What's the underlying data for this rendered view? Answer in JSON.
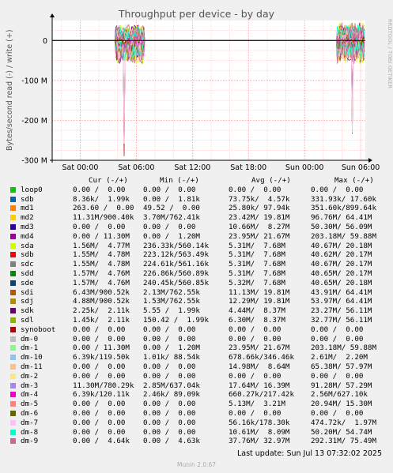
{
  "chart_data": {
    "type": "line",
    "title": "Throughput per device - by day",
    "ylabel": "Bytes/second read (-) / write (+)",
    "ylim": [
      -300000000,
      50000000
    ],
    "yticks": [
      {
        "value": 0,
        "label": "0"
      },
      {
        "value": -100000000,
        "label": "-100 M"
      },
      {
        "value": -200000000,
        "label": "-200 M"
      },
      {
        "value": -300000000,
        "label": "-300 M"
      }
    ],
    "xlim": [
      -3,
      30.5
    ],
    "xticks": [
      {
        "value": 0,
        "label": "Sat 00:00"
      },
      {
        "value": 6,
        "label": "Sat 06:00"
      },
      {
        "value": 12,
        "label": "Sat 12:00"
      },
      {
        "value": 18,
        "label": "Sat 18:00"
      },
      {
        "value": 24,
        "label": "Sun 00:00"
      },
      {
        "value": 30,
        "label": "Sun 06:00"
      }
    ],
    "grid": true,
    "bursts": [
      {
        "start": 3.8,
        "end": 6.8,
        "min_read": -290000000,
        "max_write": 8000000,
        "spike_at": 4.7
      },
      {
        "start": 27.5,
        "end": 30.8,
        "min_read": -250000000,
        "max_write": 9000000,
        "spike_at": 29.1
      }
    ],
    "legend_columns": [
      "Cur (-/+)",
      "Min (-/+)",
      "Avg (-/+)",
      "Max (-/+)"
    ],
    "series": [
      {
        "name": "loop0",
        "color": "#00cc00",
        "cur": "0.00 /  0.00",
        "min": "0.00 /  0.00",
        "avg": "0.00 /  0.00",
        "max": "0.00 /  0.00"
      },
      {
        "name": "sdb",
        "color": "#0066b3",
        "cur": "8.36k/  1.99k",
        "min": "0.00 /  1.81k",
        "avg": "73.75k/  4.57k",
        "max": "331.93k/ 17.60k"
      },
      {
        "name": "md1",
        "color": "#ff8000",
        "cur": "263.60 /  0.00",
        "min": "49.52 /  0.00",
        "avg": "25.80k/ 97.94k",
        "max": "351.60k/899.64k"
      },
      {
        "name": "md2",
        "color": "#ffcc00",
        "cur": "11.31M/900.40k",
        "min": "3.70M/762.41k",
        "avg": "23.42M/ 19.81M",
        "max": "96.76M/ 64.41M"
      },
      {
        "name": "md3",
        "color": "#330099",
        "cur": "0.00 /  0.00",
        "min": "0.00 /  0.00",
        "avg": "10.66M/  8.27M",
        "max": "50.30M/ 56.09M"
      },
      {
        "name": "md4",
        "color": "#990099",
        "cur": "0.00 / 11.30M",
        "min": "0.00 /  1.20M",
        "avg": "23.95M/ 21.67M",
        "max": "203.18M/ 59.88M"
      },
      {
        "name": "sda",
        "color": "#ccff00",
        "cur": "1.56M/  4.77M",
        "min": "236.33k/560.14k",
        "avg": "5.31M/  7.68M",
        "max": "40.67M/ 20.18M"
      },
      {
        "name": "sdb",
        "color": "#ff0000",
        "cur": "1.55M/  4.78M",
        "min": "223.12k/563.49k",
        "avg": "5.31M/  7.68M",
        "max": "40.62M/ 20.17M"
      },
      {
        "name": "sdc",
        "color": "#808080",
        "cur": "1.55M/  4.78M",
        "min": "224.61k/561.16k",
        "avg": "5.31M/  7.68M",
        "max": "40.67M/ 20.17M"
      },
      {
        "name": "sdd",
        "color": "#008f00",
        "cur": "1.57M/  4.76M",
        "min": "226.86k/560.89k",
        "avg": "5.31M/  7.68M",
        "max": "40.65M/ 20.17M"
      },
      {
        "name": "sde",
        "color": "#00487d",
        "cur": "1.57M/  4.76M",
        "min": "240.45k/560.85k",
        "avg": "5.32M/  7.68M",
        "max": "40.65M/ 20.18M"
      },
      {
        "name": "sdi",
        "color": "#b35a00",
        "cur": "6.43M/900.52k",
        "min": "2.13M/762.55k",
        "avg": "11.13M/ 19.81M",
        "max": "43.91M/ 64.41M"
      },
      {
        "name": "sdj",
        "color": "#b38f00",
        "cur": "4.88M/900.52k",
        "min": "1.53M/762.55k",
        "avg": "12.29M/ 19.81M",
        "max": "53.97M/ 64.41M"
      },
      {
        "name": "sdk",
        "color": "#6b006b",
        "cur": "2.25k/  2.11k",
        "min": "5.55 /  1.99k",
        "avg": "4.44M/  8.37M",
        "max": "23.27M/ 56.11M"
      },
      {
        "name": "sdl",
        "color": "#8fb300",
        "cur": "1.45k/  2.11k",
        "min": "150.42 /  1.99k",
        "avg": "6.30M/  8.37M",
        "max": "32.77M/ 56.11M"
      },
      {
        "name": "synoboot",
        "color": "#b30000",
        "cur": "0.00 /  0.00",
        "min": "0.00 /  0.00",
        "avg": "0.00 /  0.00",
        "max": "0.00 /  0.00"
      },
      {
        "name": "dm-0",
        "color": "#bebebe",
        "cur": "0.00 /  0.00",
        "min": "0.00 /  0.00",
        "avg": "0.00 /  0.00",
        "max": "0.00 /  0.00"
      },
      {
        "name": "dm-1",
        "color": "#80ff80",
        "cur": "0.00 / 11.30M",
        "min": "0.00 /  1.20M",
        "avg": "23.95M/ 21.67M",
        "max": "203.18M/ 59.88M"
      },
      {
        "name": "dm-10",
        "color": "#80c9ff",
        "cur": "6.39k/119.50k",
        "min": "1.01k/ 88.54k",
        "avg": "678.66k/346.46k",
        "max": "2.61M/  2.20M"
      },
      {
        "name": "dm-11",
        "color": "#ffc080",
        "cur": "0.00 /  0.00",
        "min": "0.00 /  0.00",
        "avg": "14.98M/  8.64M",
        "max": "65.38M/ 57.97M"
      },
      {
        "name": "dm-2",
        "color": "#ffe680",
        "cur": "0.00 /  0.00",
        "min": "0.00 /  0.00",
        "avg": "0.00 /  0.00",
        "max": "0.00 /  0.00"
      },
      {
        "name": "dm-3",
        "color": "#aa80ff",
        "cur": "11.30M/780.29k",
        "min": "2.85M/637.04k",
        "avg": "17.64M/ 16.39M",
        "max": "91.28M/ 57.29M"
      },
      {
        "name": "dm-4",
        "color": "#ee00cc",
        "cur": "6.39k/120.11k",
        "min": "2.46k/ 89.09k",
        "avg": "660.27k/217.42k",
        "max": "2.56M/627.10k"
      },
      {
        "name": "dm-5",
        "color": "#ff8080",
        "cur": "0.00 /  0.00",
        "min": "0.00 /  0.00",
        "avg": "5.13M/  3.21M",
        "max": "20.94M/ 15.30M"
      },
      {
        "name": "dm-6",
        "color": "#666600",
        "cur": "0.00 /  0.00",
        "min": "0.00 /  0.00",
        "avg": "0.00 /  0.00",
        "max": "0.00 /  0.00"
      },
      {
        "name": "dm-7",
        "color": "#ffbfff",
        "cur": "0.00 /  0.00",
        "min": "0.00 /  0.00",
        "avg": "56.16k/178.30k",
        "max": "474.72k/  1.97M"
      },
      {
        "name": "dm-8",
        "color": "#00ffcc",
        "cur": "0.00 /  0.00",
        "min": "0.00 /  0.00",
        "avg": "10.61M/  8.09M",
        "max": "50.20M/ 54.74M"
      },
      {
        "name": "dm-9",
        "color": "#cc6699",
        "cur": "0.00 /  4.64k",
        "min": "0.00 /  4.63k",
        "avg": "37.76M/ 32.97M",
        "max": "292.31M/ 75.49M"
      }
    ]
  },
  "footer": {
    "last_update": "Last update: Sun Jul 13 07:32:02 2025",
    "version": "Munin 2.0.67"
  },
  "watermark": "RRDTOOL / TOBI OETIKER"
}
